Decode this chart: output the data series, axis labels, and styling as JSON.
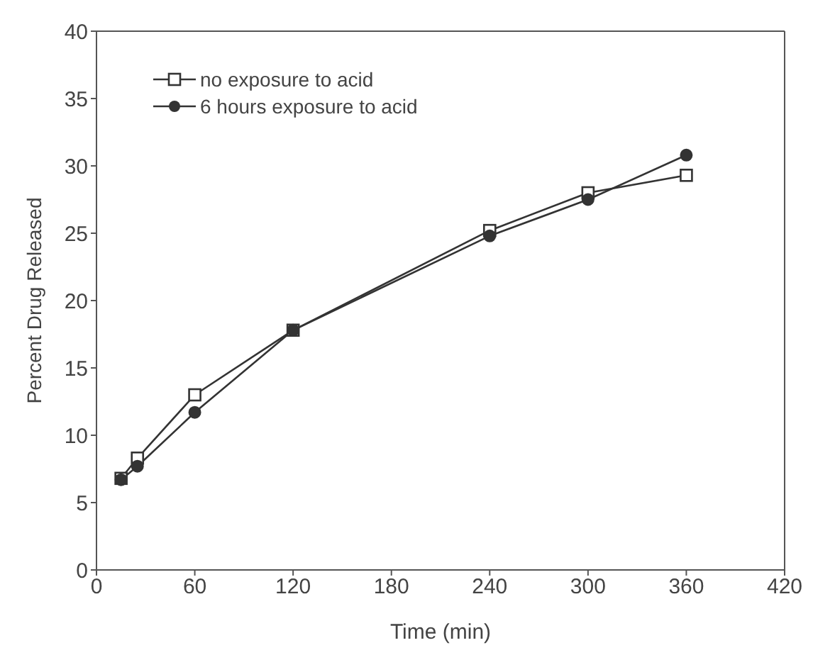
{
  "chart_data": {
    "type": "line",
    "xlabel": "Time (min)",
    "ylabel": "Percent Drug Released",
    "xlim": [
      0,
      420
    ],
    "xticks": [
      0,
      60,
      120,
      180,
      240,
      300,
      360,
      420
    ],
    "ylim": [
      0,
      40
    ],
    "yticks": [
      0,
      5,
      10,
      15,
      20,
      25,
      30,
      35,
      40
    ],
    "grid": false,
    "legend": "top left",
    "line_style": "solid",
    "series": [
      {
        "name": "no exposure to acid",
        "color": "#333333",
        "marker": "square",
        "x": [
          15,
          25,
          60,
          120,
          240,
          300,
          360
        ],
        "values": [
          6.8,
          8.3,
          13,
          17.8,
          25.2,
          28,
          29.3
        ]
      },
      {
        "name": "6 hours exposure to acid",
        "color": "#333333",
        "marker": "circle",
        "x": [
          15,
          25,
          60,
          120,
          240,
          300,
          360
        ],
        "values": [
          6.7,
          7.7,
          11.7,
          17.8,
          24.8,
          27.5,
          30.8
        ]
      }
    ]
  }
}
